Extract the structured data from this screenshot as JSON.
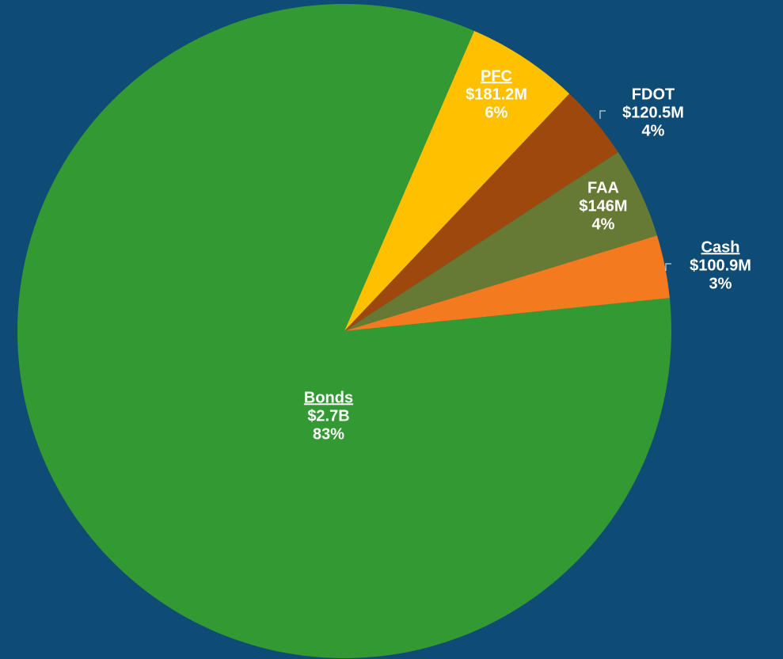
{
  "chart_data": {
    "type": "pie",
    "categories": [
      " Bonds",
      "PFC",
      "FDOT",
      "FAA",
      " Cash"
    ],
    "values": [
      2700000000,
      181200000,
      120500000,
      146000000,
      100900000
    ],
    "value_labels": [
      "$2.7B",
      "$181.2M",
      "$120.5M",
      "$146M",
      "$100.9M"
    ],
    "percent_labels": [
      "83%",
      "6%",
      "4%",
      "4%",
      "3%"
    ],
    "colors": [
      "#339933",
      "#ffc000",
      "#9e480e",
      "#667a33",
      "#f47a20"
    ],
    "underline": [
      true,
      true,
      false,
      false,
      true
    ]
  }
}
